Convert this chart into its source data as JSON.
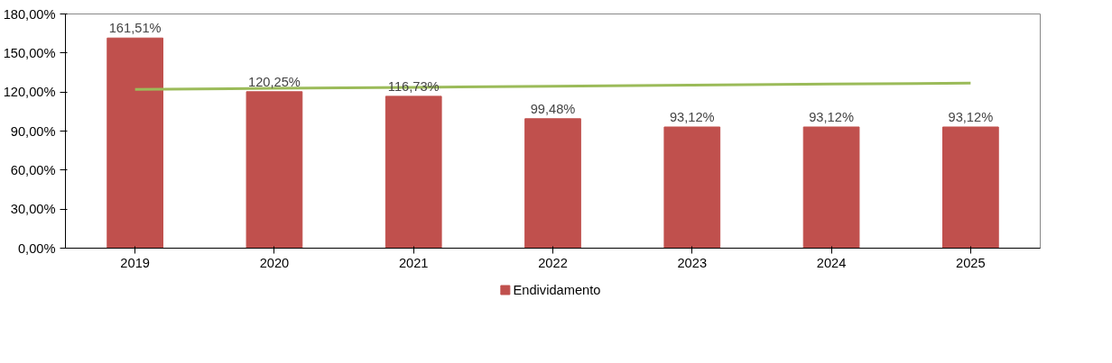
{
  "chart_data": {
    "type": "bar",
    "categories": [
      "2019",
      "2020",
      "2021",
      "2022",
      "2023",
      "2024",
      "2025"
    ],
    "series": [
      {
        "name": "Endividamento",
        "color": "#c0504d",
        "values": [
          161.51,
          120.25,
          116.73,
          99.48,
          93.12,
          93.12,
          93.12
        ],
        "value_labels": [
          "161,51%",
          "120,25%",
          "116,73%",
          "99,48%",
          "93,12%",
          "93,12%",
          "93,12%"
        ]
      },
      {
        "type": "line",
        "color": "#9bbb59",
        "values": [
          122.0,
          122.8,
          123.6,
          124.5,
          125.3,
          126.1,
          126.9
        ]
      }
    ],
    "ylim": [
      0,
      180
    ],
    "yticks": [
      {
        "value": 0,
        "label": "0,00%"
      },
      {
        "value": 30,
        "label": "30,00%"
      },
      {
        "value": 60,
        "label": "60,00%"
      },
      {
        "value": 90,
        "label": "90,00%"
      },
      {
        "value": 120,
        "label": "120,00%"
      },
      {
        "value": 150,
        "label": "150,00%"
      },
      {
        "value": 180,
        "label": "180,00%"
      }
    ],
    "grid": false,
    "legend": "bottom"
  }
}
